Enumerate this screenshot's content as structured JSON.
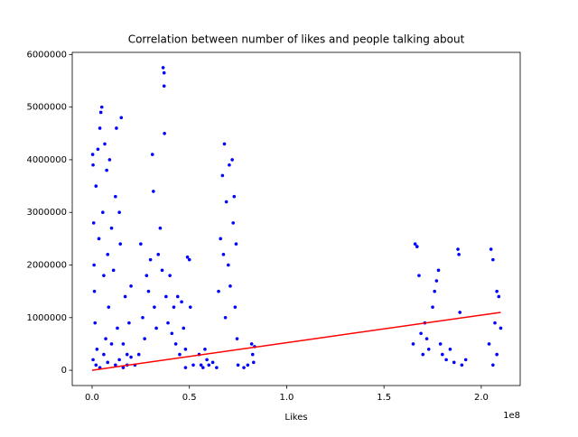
{
  "chart_data": {
    "type": "scatter",
    "title": "Correlation between number of likes and people talking about",
    "x_label": "Likes",
    "x_offset_label": "1e8",
    "xlim": [
      -10200000,
      220000000
    ],
    "ylim": [
      -290000,
      6040000
    ],
    "xticks": [
      {
        "value": 0,
        "label": "0.0"
      },
      {
        "value": 50000000,
        "label": "0.5"
      },
      {
        "value": 100000000,
        "label": "1.0"
      },
      {
        "value": 150000000,
        "label": "1.5"
      },
      {
        "value": 200000000,
        "label": "2.0"
      }
    ],
    "yticks": [
      0,
      1000000,
      2000000,
      3000000,
      4000000,
      5000000,
      6000000
    ],
    "series": [
      {
        "color": "#0000ff",
        "x": [
          300000,
          500000,
          800000,
          1000000,
          1200000,
          1500000,
          2000000,
          2500000,
          3000000,
          3500000,
          4000000,
          4500000,
          5000000,
          5500000,
          6000000,
          6500000,
          7000000,
          7500000,
          8000000,
          8500000,
          9000000,
          10000000,
          11000000,
          12000000,
          12500000,
          13000000,
          14000000,
          14500000,
          15000000,
          16000000,
          17000000,
          18000000,
          19000000,
          20000000,
          500000,
          2000000,
          4000000,
          6000000,
          8000000,
          10000000,
          12000000,
          14000000,
          16000000,
          18000000,
          20000000,
          22000000,
          24000000,
          25000000,
          26000000,
          27000000,
          28000000,
          29000000,
          30000000,
          31000000,
          31500000,
          32000000,
          33000000,
          34000000,
          35000000,
          36000000,
          36500000,
          37000000,
          37000000,
          37200000,
          38000000,
          39000000,
          40000000,
          41000000,
          42000000,
          43000000,
          44000000,
          45000000,
          46000000,
          47000000,
          48000000,
          49000000,
          50000000,
          50500000,
          48000000,
          52000000,
          55000000,
          56000000,
          57000000,
          58000000,
          59000000,
          60000000,
          62000000,
          64000000,
          65000000,
          66000000,
          67000000,
          67500000,
          68000000,
          68500000,
          69000000,
          70000000,
          70500000,
          71000000,
          72000000,
          72500000,
          73000000,
          73500000,
          74000000,
          74500000,
          75000000,
          78000000,
          80000000,
          82000000,
          82500000,
          83000000,
          83500000,
          165000000,
          166000000,
          167000000,
          168000000,
          169000000,
          170000000,
          171000000,
          172000000,
          173000000,
          175000000,
          176000000,
          177000000,
          178000000,
          179000000,
          180000000,
          182000000,
          184000000,
          186000000,
          188000000,
          188500000,
          189000000,
          190000000,
          192000000,
          204000000,
          205000000,
          206000000,
          207000000,
          208000000,
          209000000,
          210000000,
          206000000,
          208000000
        ],
        "values": [
          4100000,
          3900000,
          2800000,
          2000000,
          1500000,
          900000,
          3500000,
          400000,
          4200000,
          2500000,
          4600000,
          4900000,
          5000000,
          3000000,
          1800000,
          4300000,
          600000,
          3800000,
          2200000,
          1200000,
          4000000,
          2700000,
          1900000,
          3300000,
          4600000,
          800000,
          3000000,
          2400000,
          4800000,
          500000,
          1400000,
          300000,
          900000,
          1600000,
          200000,
          100000,
          50000,
          300000,
          150000,
          500000,
          100000,
          200000,
          50000,
          100000,
          250000,
          100000,
          300000,
          2400000,
          1000000,
          600000,
          1800000,
          1500000,
          2100000,
          4100000,
          3400000,
          1200000,
          800000,
          2200000,
          2700000,
          1900000,
          5750000,
          5650000,
          5400000,
          4500000,
          1400000,
          900000,
          1800000,
          700000,
          1200000,
          500000,
          1400000,
          300000,
          1300000,
          800000,
          400000,
          2150000,
          2100000,
          1200000,
          50000,
          100000,
          300000,
          100000,
          50000,
          400000,
          200000,
          100000,
          150000,
          50000,
          1500000,
          2500000,
          3700000,
          2200000,
          4300000,
          1000000,
          3200000,
          2000000,
          3900000,
          1600000,
          4000000,
          2800000,
          3300000,
          1200000,
          2400000,
          600000,
          100000,
          50000,
          100000,
          500000,
          300000,
          150000,
          450000,
          500000,
          2400000,
          2350000,
          1800000,
          700000,
          300000,
          900000,
          600000,
          400000,
          1200000,
          1500000,
          1700000,
          1900000,
          500000,
          300000,
          200000,
          400000,
          150000,
          2300000,
          2200000,
          1100000,
          100000,
          200000,
          500000,
          2300000,
          2100000,
          900000,
          1500000,
          1400000,
          800000,
          100000,
          300000
        ]
      }
    ],
    "fit": {
      "color": "#ff0000",
      "x": [
        0,
        210000000
      ],
      "values": [
        0,
        1100000
      ]
    }
  }
}
